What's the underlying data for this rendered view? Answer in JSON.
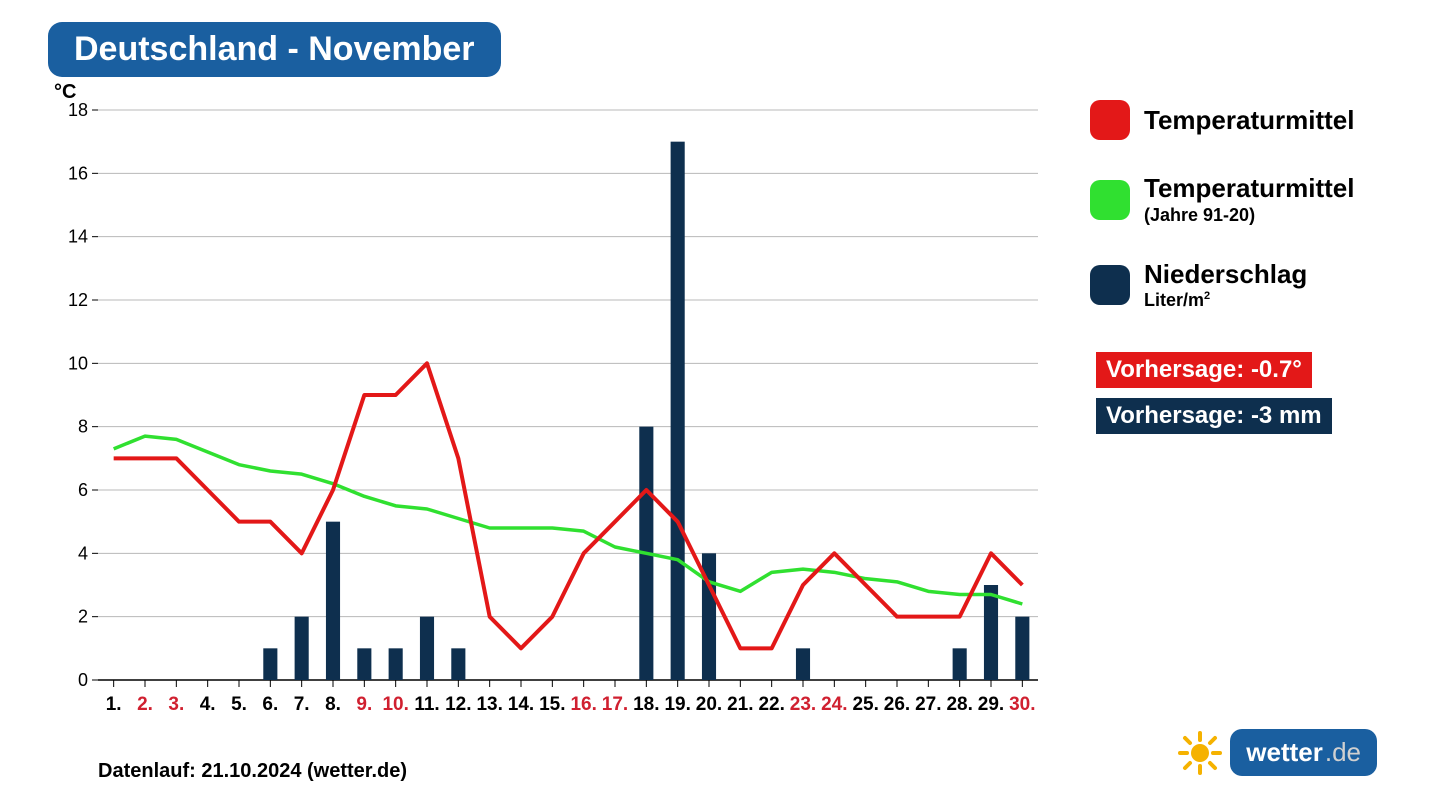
{
  "title": "Deutschland - November",
  "y_unit": "°C",
  "footer": "Datenlauf: 21.10.2024 (wetter.de)",
  "chart": {
    "type": "combo-line-bar",
    "background_color": "#ffffff",
    "grid_color": "#b8b8b8",
    "ylim": [
      0,
      18
    ],
    "ytick_step": 2,
    "yticks": [
      0,
      2,
      4,
      6,
      8,
      10,
      12,
      14,
      16,
      18
    ],
    "x_categories": [
      "1.",
      "2.",
      "3.",
      "4.",
      "5.",
      "6.",
      "7.",
      "8.",
      "9.",
      "10.",
      "11.",
      "12.",
      "13.",
      "14.",
      "15.",
      "16.",
      "17.",
      "18.",
      "19.",
      "20.",
      "21.",
      "22.",
      "23.",
      "24.",
      "25.",
      "26.",
      "27.",
      "28.",
      "29.",
      "30."
    ],
    "x_weekend": [
      false,
      true,
      true,
      false,
      false,
      false,
      false,
      false,
      true,
      true,
      false,
      false,
      false,
      false,
      false,
      true,
      true,
      false,
      false,
      false,
      false,
      false,
      true,
      true,
      false,
      false,
      false,
      false,
      false,
      true
    ],
    "bars": {
      "color": "#0e2f4e",
      "width": 0.45,
      "values": [
        0,
        0,
        0,
        0,
        0,
        1,
        2,
        5,
        1,
        1,
        2,
        1,
        0,
        0,
        0,
        0,
        0,
        8,
        17,
        4,
        0,
        0,
        1,
        0,
        0,
        0,
        0,
        1,
        3,
        2
      ]
    },
    "line_temp": {
      "color": "#e31818",
      "width": 4,
      "values": [
        7,
        7,
        7,
        6,
        5,
        5,
        4,
        6,
        9,
        9,
        10,
        7,
        2,
        1,
        2,
        4,
        5,
        6,
        5,
        3,
        1,
        1,
        3,
        4,
        3,
        2,
        2,
        2,
        4,
        3
      ]
    },
    "line_climate": {
      "color": "#30e030",
      "width": 3.5,
      "values": [
        7.3,
        7.7,
        7.6,
        7.2,
        6.8,
        6.6,
        6.5,
        6.2,
        5.8,
        5.5,
        5.4,
        5.1,
        4.8,
        4.8,
        4.8,
        4.7,
        4.2,
        4.0,
        3.8,
        3.1,
        2.8,
        3.4,
        3.5,
        3.4,
        3.2,
        3.1,
        2.8,
        2.7,
        2.7,
        2.4
      ]
    }
  },
  "legend": {
    "items": [
      {
        "label": "Temperaturmittel",
        "sub": "",
        "color": "#e31818"
      },
      {
        "label": "Temperaturmittel",
        "sub": "(Jahre 91-20)",
        "color": "#30e030"
      },
      {
        "label": "Niederschlag",
        "sub": "Liter/m²",
        "color": "#0e2f4e"
      }
    ]
  },
  "forecast": {
    "temp_label": "Vorhersage: -0.7°",
    "precip_label": "Vorhersage: -3 mm"
  },
  "logo": {
    "brand": "wetter",
    "tld": ".de"
  },
  "colors": {
    "title_bg": "#1a5fa0",
    "weekend_text": "#d02030"
  }
}
